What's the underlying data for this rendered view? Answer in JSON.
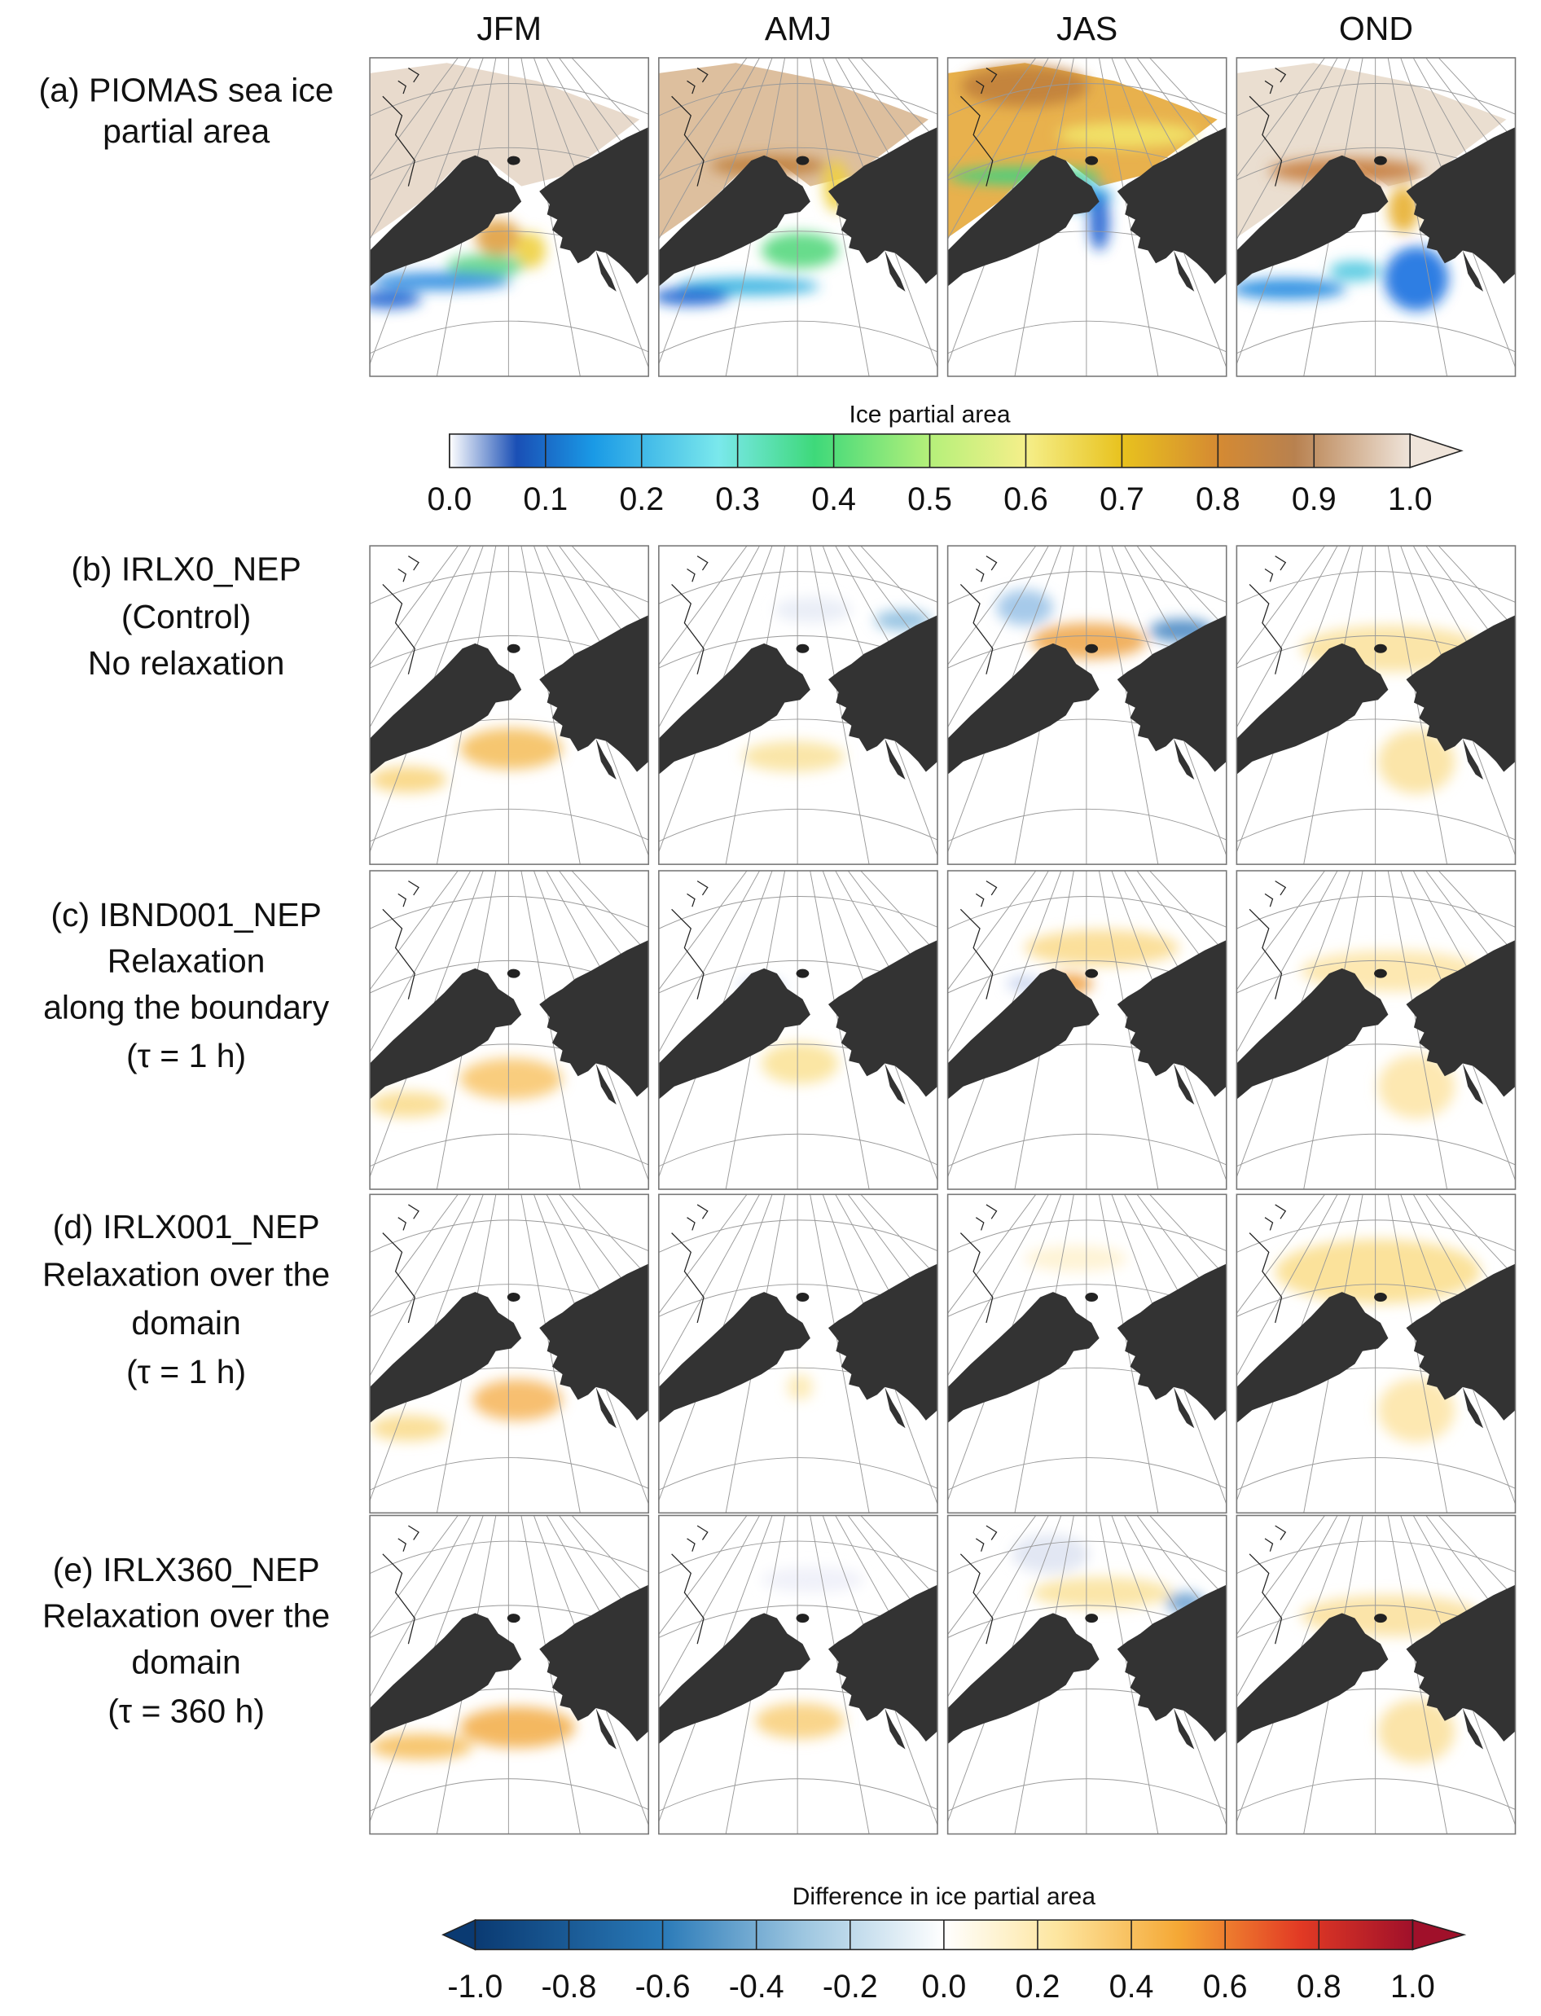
{
  "column_headers": [
    "JFM",
    "AMJ",
    "JAS",
    "OND"
  ],
  "rows": [
    {
      "label_lines": [
        "(a) PIOMAS sea ice",
        "partial area"
      ]
    },
    {
      "label_lines": [
        "(b) IRLX0_NEP",
        "(Control)",
        "No relaxation"
      ]
    },
    {
      "label_lines": [
        "(c) IBND001_NEP",
        "Relaxation",
        "along the boundary",
        "(τ = 1 h)"
      ]
    },
    {
      "label_lines": [
        "(d) IRLX001_NEP",
        "Relaxation over the",
        "domain",
        "(τ = 1 h)"
      ]
    },
    {
      "label_lines": [
        "(e) IRLX360_NEP",
        "Relaxation over the",
        "domain",
        "(τ = 360 h)"
      ]
    }
  ],
  "colorbars": [
    {
      "title": "Ice partial area",
      "tick_labels": [
        "0.0",
        "0.1",
        "0.2",
        "0.3",
        "0.4",
        "0.5",
        "0.6",
        "0.7",
        "0.8",
        "0.9",
        "1.0"
      ]
    },
    {
      "title": "Difference in ice partial area",
      "tick_labels": [
        "-1.0",
        "-0.8",
        "-0.6",
        "-0.4",
        "-0.2",
        "0.0",
        "0.2",
        "0.4",
        "0.6",
        "0.8",
        "1.0"
      ]
    }
  ]
}
